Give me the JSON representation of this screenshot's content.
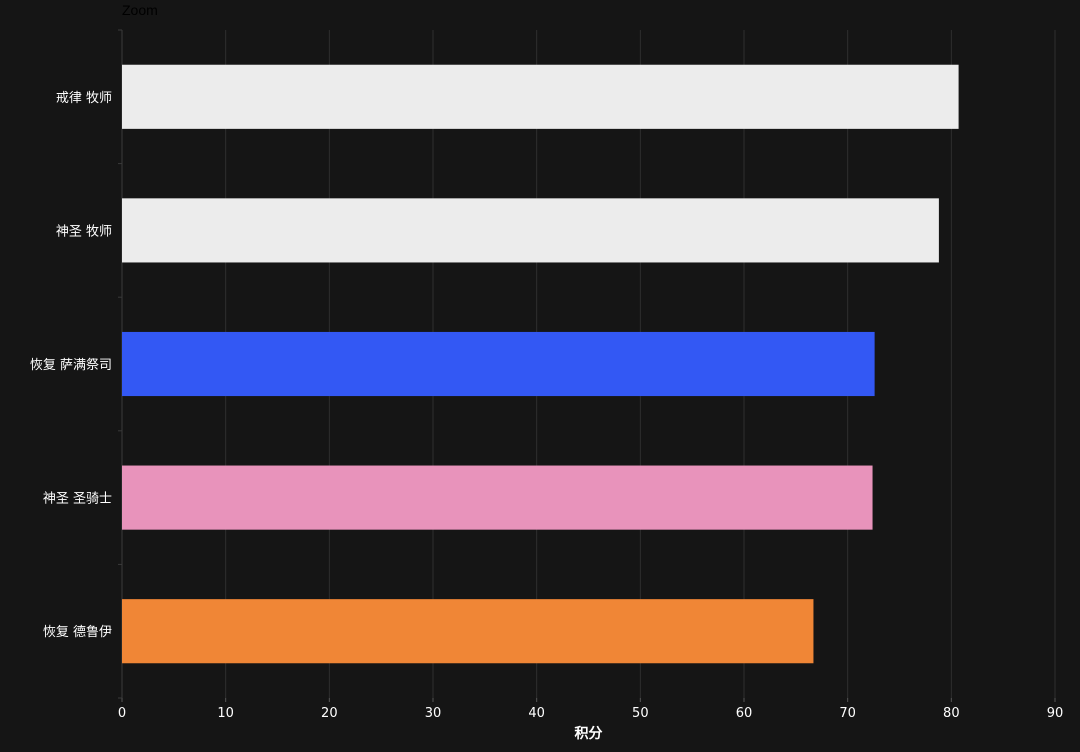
{
  "toolbar": {
    "zoom_label": "Zoom"
  },
  "chart_data": {
    "type": "bar",
    "orientation": "horizontal",
    "categories": [
      "戒律 牧师",
      "神圣 牧师",
      "恢复 萨满祭司",
      "神圣 圣骑士",
      "恢复 德鲁伊"
    ],
    "values": [
      80.7,
      78.8,
      72.6,
      72.4,
      66.7
    ],
    "colors": [
      "#ececec",
      "#ececec",
      "#3358f4",
      "#e893bb",
      "#f08636"
    ],
    "xlabel": "积分",
    "ylabel": "",
    "xlim": [
      0,
      90
    ],
    "xticks": [
      0,
      10,
      20,
      30,
      40,
      50,
      60,
      70,
      80,
      90
    ],
    "grid": true,
    "legend": "none"
  }
}
